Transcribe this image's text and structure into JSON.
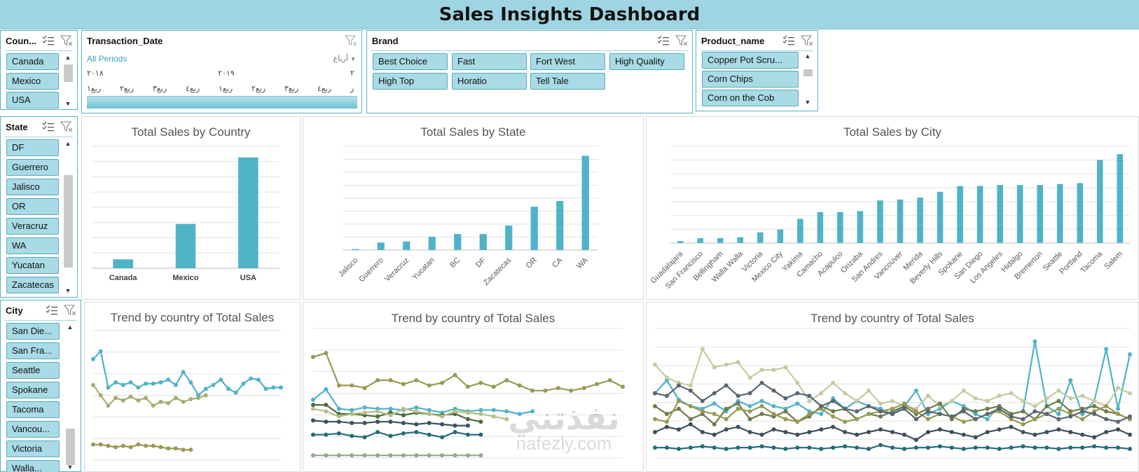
{
  "dashboard": {
    "title": "Sales Insights Dashboard"
  },
  "colors": {
    "accent": "#4fb3c8",
    "title_bar": "#9fd5e2",
    "chip_fill": "#a9dbe6",
    "chip_border": "#5aaab9"
  },
  "slicers": {
    "country": {
      "title": "Coun...",
      "items": [
        "Canada",
        "Mexico",
        "USA"
      ]
    },
    "transaction_date": {
      "title": "Transaction_Date",
      "all_periods": "All Periods",
      "level": "أرباع",
      "years": [
        "٢٠١٨",
        "٢٠١٩",
        "٢"
      ],
      "quarters": [
        "ربع١",
        "ربع٢",
        "ربع٣",
        "ربع٤",
        "ربع١",
        "ربع٢",
        "ربع٣",
        "ربع٤",
        "ر"
      ]
    },
    "brand": {
      "title": "Brand",
      "items": [
        "Best Choice",
        "Fast",
        "Fort West",
        "High Quality",
        "High Top",
        "Horatio",
        "Tell Tale"
      ]
    },
    "product_name": {
      "title": "Product_name",
      "items": [
        "Copper Pot Scru...",
        "Corn Chips",
        "Corn on the Cob"
      ]
    },
    "state": {
      "title": "State",
      "items": [
        "DF",
        "Guerrero",
        "Jalisco",
        "OR",
        "Veracruz",
        "WA",
        "Yucatan",
        "Zacatecas"
      ]
    },
    "city": {
      "title": "City",
      "items": [
        "San Die...",
        "San Fra...",
        "Seattle",
        "Spokane",
        "Tacoma",
        "Vancou...",
        "Victoria",
        "Walla..."
      ]
    }
  },
  "icons": {
    "multi_select": "multi-select-icon",
    "clear_filter": "clear-filter-icon"
  },
  "watermark": {
    "text": "نفذتني",
    "sub": "nafezly.com"
  },
  "chart_data": [
    {
      "type": "bar",
      "title": "Total Sales by Country",
      "categories": [
        "Canada",
        "Mexico",
        "USA"
      ],
      "values": [
        8,
        40,
        100
      ],
      "ylim": [
        0,
        110
      ],
      "grid": true,
      "color": "#4fb3c8"
    },
    {
      "type": "bar",
      "title": "Total Sales by State",
      "categories": [
        "Jalisco",
        "Guerrero",
        "Veracruz",
        "Yucatan",
        "BC",
        "DF",
        "Zacatecas",
        "OR",
        "CA",
        "WA"
      ],
      "values": [
        1,
        8,
        9,
        14,
        17,
        17,
        26,
        46,
        52,
        100
      ],
      "ylim": [
        0,
        110
      ],
      "grid": true,
      "color": "#4fb3c8"
    },
    {
      "type": "bar",
      "title": "Total Sales by City",
      "categories": [
        "Guadalajara",
        "San Francisco",
        "Bellingham",
        "Walla Walla",
        "Victoria",
        "Mexico City",
        "Yakima",
        "Camacho",
        "Acapulco",
        "Orizaba",
        "San Andres",
        "Vancouver",
        "Merida",
        "Beverly Hills",
        "Spokane",
        "San Diego",
        "Los Angeles",
        "Hidalgo",
        "Bremerton",
        "Seattle",
        "Portland",
        "Tacoma",
        "Salem"
      ],
      "values": [
        2,
        5,
        5,
        6,
        11,
        14,
        25,
        32,
        32,
        33,
        44,
        45,
        47,
        53,
        59,
        59,
        60,
        60,
        60,
        61,
        62,
        86,
        92
      ],
      "ylim": [
        0,
        100
      ],
      "grid": true,
      "color": "#4fb3c8"
    },
    {
      "type": "line",
      "title": "Trend by country of Total Sales",
      "ylim": [
        0,
        100
      ],
      "grid": true,
      "series": [
        {
          "color": "#4fb3c8",
          "values": [
            78,
            84,
            56,
            60,
            58,
            60,
            56,
            59,
            59,
            60,
            62,
            58,
            68,
            60,
            50,
            55,
            58,
            62,
            55,
            52,
            59,
            63,
            62,
            55,
            56,
            56
          ]
        },
        {
          "color": "#a5b06f",
          "values": [
            58,
            50,
            42,
            48,
            46,
            49,
            46,
            48,
            42,
            45,
            44,
            48,
            45,
            47,
            48,
            50
          ]
        },
        {
          "color": "#999a54",
          "values": [
            12,
            12,
            11,
            10,
            11,
            10,
            12,
            11,
            11,
            10,
            9,
            9,
            8,
            8
          ]
        }
      ]
    },
    {
      "type": "line",
      "title": "Trend by country of Total Sales",
      "ylim": [
        0,
        100
      ],
      "grid": true,
      "series": [
        {
          "color": "#999a54",
          "values": [
            78,
            81,
            56,
            56,
            54,
            60,
            60,
            57,
            60,
            56,
            58,
            64,
            55,
            58,
            55,
            60,
            56,
            52,
            52,
            54,
            52,
            54,
            57,
            60,
            55
          ]
        },
        {
          "color": "#4fb3c8",
          "values": [
            45,
            53,
            38,
            37,
            39,
            38,
            38,
            37,
            39,
            37,
            35,
            38,
            36,
            37,
            37,
            36,
            34,
            36
          ]
        },
        {
          "color": "#4a6b3a",
          "values": [
            41,
            41,
            34,
            34,
            33,
            32,
            35,
            33,
            35,
            34,
            33,
            34,
            30,
            28
          ]
        },
        {
          "color": "#3c4f5f",
          "values": [
            29,
            28,
            28,
            27,
            27,
            28,
            28,
            27,
            26,
            27,
            26,
            25,
            25
          ]
        },
        {
          "color": "#b7bf8a",
          "values": [
            38,
            36,
            32,
            34,
            35,
            36,
            33,
            38,
            36,
            34,
            32,
            36,
            35,
            34,
            32,
            30
          ]
        },
        {
          "color": "#246a7c",
          "values": [
            18,
            18,
            19,
            17,
            16,
            20,
            17,
            19,
            20,
            18,
            16,
            20,
            18,
            18
          ]
        },
        {
          "color": "#8fa78f",
          "values": [
            2,
            2,
            2,
            2,
            2,
            2,
            2,
            2,
            2,
            2,
            2,
            2,
            2,
            2
          ]
        }
      ]
    },
    {
      "type": "line",
      "title": "Trend by country of Total Sales",
      "ylim": [
        0,
        100
      ],
      "grid": true,
      "series": [
        {
          "color": "#4fb3c8",
          "values": [
            50,
            60,
            45,
            40,
            38,
            42,
            36,
            44,
            40,
            44,
            40,
            38,
            42,
            36,
            34,
            46,
            38,
            44,
            40,
            38,
            34,
            40,
            52,
            34,
            38,
            44,
            40,
            34,
            30,
            40,
            34,
            36,
            90,
            40,
            34,
            60,
            34,
            44,
            84,
            38,
            80
          ]
        },
        {
          "color": "#c6caa0",
          "values": [
            72,
            62,
            58,
            56,
            84,
            70,
            72,
            74,
            62,
            68,
            68,
            70,
            58,
            44,
            50,
            58,
            50,
            44,
            52,
            42,
            44,
            40,
            38,
            48,
            40,
            44,
            52,
            46,
            44,
            48,
            50,
            44,
            40,
            46,
            52,
            46,
            48,
            44,
            40,
            54,
            50
          ]
        },
        {
          "color": "#6d7b4a",
          "values": [
            40,
            34,
            38,
            30,
            34,
            26,
            38,
            42,
            30,
            34,
            32,
            36,
            28,
            32,
            40,
            36,
            38,
            30,
            34,
            32,
            36,
            40,
            34,
            38,
            42,
            30,
            38,
            36,
            38,
            40,
            34,
            36,
            30,
            40,
            44,
            36,
            38,
            40,
            36,
            34,
            30
          ]
        },
        {
          "color": "#3c4f5f",
          "values": [
            20,
            24,
            22,
            26,
            20,
            18,
            22,
            24,
            20,
            18,
            22,
            20,
            18,
            20,
            22,
            24,
            20,
            18,
            20,
            22,
            20,
            18,
            14,
            20,
            22,
            20,
            18,
            16,
            20,
            22,
            24,
            20,
            18,
            20,
            22,
            20,
            18,
            16,
            20,
            22,
            18
          ]
        },
        {
          "color": "#999a54",
          "values": [
            30,
            28,
            44,
            40,
            36,
            34,
            30,
            38,
            36,
            40,
            34,
            30,
            28,
            34,
            38,
            32,
            28,
            30,
            34,
            36,
            38,
            42,
            36,
            30,
            34,
            32,
            28,
            30,
            34,
            36,
            30,
            26,
            30,
            34,
            38,
            34,
            30,
            36,
            40,
            34,
            30
          ]
        },
        {
          "color": "#246a7c",
          "values": [
            8,
            8,
            7,
            8,
            9,
            8,
            7,
            8,
            8,
            9,
            8,
            7,
            8,
            8,
            7,
            8,
            9,
            8,
            7,
            10,
            8,
            7,
            8,
            8,
            9,
            8,
            7,
            8,
            8,
            7,
            8,
            9,
            8,
            8,
            7,
            8,
            8,
            9,
            8,
            8,
            7
          ]
        },
        {
          "color": "#5a6670",
          "values": [
            50,
            48,
            56,
            52,
            44,
            50,
            56,
            48,
            50,
            58,
            52,
            46,
            50,
            48,
            40,
            44,
            38,
            36,
            40,
            36,
            34,
            38,
            30,
            36,
            34,
            32,
            36,
            30,
            34,
            38,
            32,
            30,
            36,
            34,
            30,
            32,
            36,
            34,
            30,
            28,
            32
          ]
        }
      ]
    }
  ]
}
